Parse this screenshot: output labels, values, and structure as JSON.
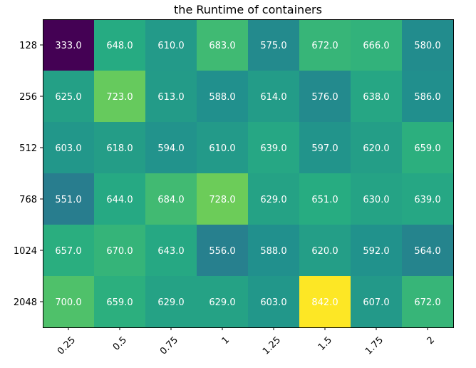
{
  "chart_data": {
    "type": "heatmap",
    "title": "the Runtime of containers",
    "xlabel": "",
    "ylabel": "",
    "x_categories": [
      "0.25",
      "0.5",
      "0.75",
      "1",
      "1.25",
      "1.5",
      "1.75",
      "2"
    ],
    "y_categories": [
      "128",
      "256",
      "512",
      "768",
      "1024",
      "2048"
    ],
    "values": [
      [
        333.0,
        648.0,
        610.0,
        683.0,
        575.0,
        672.0,
        666.0,
        580.0
      ],
      [
        625.0,
        723.0,
        613.0,
        588.0,
        614.0,
        576.0,
        638.0,
        586.0
      ],
      [
        603.0,
        618.0,
        594.0,
        610.0,
        639.0,
        597.0,
        620.0,
        659.0
      ],
      [
        551.0,
        644.0,
        684.0,
        728.0,
        629.0,
        651.0,
        630.0,
        639.0
      ],
      [
        657.0,
        670.0,
        643.0,
        556.0,
        588.0,
        620.0,
        592.0,
        564.0
      ],
      [
        700.0,
        659.0,
        629.0,
        629.0,
        603.0,
        842.0,
        607.0,
        672.0
      ]
    ],
    "colormap": "viridis",
    "grid": false,
    "legend": "none"
  }
}
